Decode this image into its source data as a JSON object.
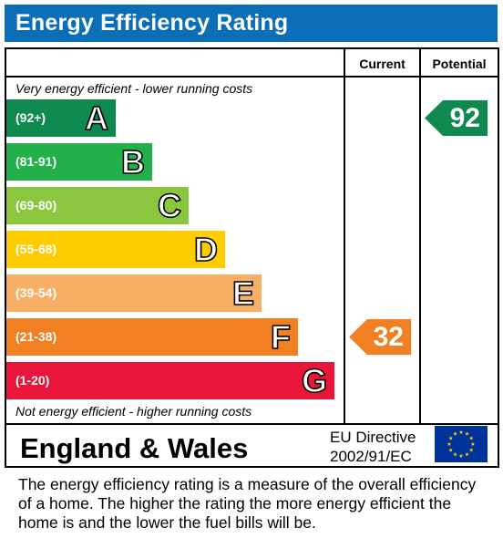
{
  "header": {
    "title": "Energy Efficiency Rating"
  },
  "columns": {
    "current": "Current",
    "potential": "Potential"
  },
  "notes": {
    "top": "Very energy efficient - lower running costs",
    "bottom": "Not energy efficient - higher running costs"
  },
  "chart_data": {
    "type": "bar",
    "categories": [
      "A",
      "B",
      "C",
      "D",
      "E",
      "F",
      "G"
    ],
    "ranges": [
      "(92+)",
      "(81-91)",
      "(69-80)",
      "(55-68)",
      "(39-54)",
      "(21-38)",
      "(1-20)"
    ],
    "colors": [
      "#0f8a4f",
      "#22b04b",
      "#8cc63f",
      "#ffcc00",
      "#f7ae65",
      "#f08022",
      "#e9153b"
    ],
    "current": {
      "value": 32,
      "band": "F",
      "color": "#f08022"
    },
    "potential": {
      "value": 92,
      "band": "A",
      "color": "#0f8a4f"
    }
  },
  "footer": {
    "region": "England & Wales",
    "directive_line1": "EU Directive",
    "directive_line2": "2002/91/EC"
  },
  "description": "The energy efficiency rating is a measure of the overall efficiency of a home.  The higher the rating the more energy efficient the home is and the lower the fuel bills will be."
}
